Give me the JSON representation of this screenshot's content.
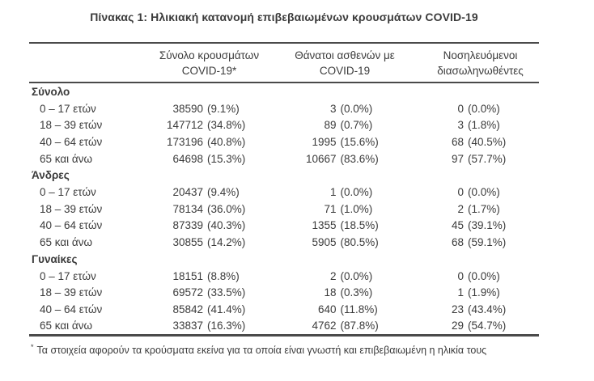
{
  "title": "Πίνακας 1: Ηλικιακή κατανομή επιβεβαιωμένων κρουσμάτων COVID-19",
  "header": {
    "columns": [
      {
        "line1": "Σύνολο κρουσμάτων",
        "line2": "COVID-19*"
      },
      {
        "line1": "Θάνατοι ασθενών με",
        "line2": "COVID-19"
      },
      {
        "line1": "Νοσηλευόμενοι",
        "line2": "διασωληνωθέντες"
      }
    ]
  },
  "sections": [
    {
      "label": "Σύνολο",
      "rows": [
        {
          "label": "0 – 17 ετών",
          "cases": {
            "n": "38590",
            "pct": "(9.1%)"
          },
          "deaths": {
            "n": "3",
            "pct": "(0.0%)"
          },
          "intubated": {
            "n": "0",
            "pct": "(0.0%)"
          }
        },
        {
          "label": "18 – 39 ετών",
          "cases": {
            "n": "147712",
            "pct": "(34.8%)"
          },
          "deaths": {
            "n": "89",
            "pct": "(0.7%)"
          },
          "intubated": {
            "n": "3",
            "pct": "(1.8%)"
          }
        },
        {
          "label": "40 – 64 ετών",
          "cases": {
            "n": "173196",
            "pct": "(40.8%)"
          },
          "deaths": {
            "n": "1995",
            "pct": "(15.6%)"
          },
          "intubated": {
            "n": "68",
            "pct": "(40.5%)"
          }
        },
        {
          "label": "65 και άνω",
          "cases": {
            "n": "64698",
            "pct": "(15.3%)"
          },
          "deaths": {
            "n": "10667",
            "pct": "(83.6%)"
          },
          "intubated": {
            "n": "97",
            "pct": "(57.7%)"
          }
        }
      ]
    },
    {
      "label": "Άνδρες",
      "rows": [
        {
          "label": "0 – 17 ετών",
          "cases": {
            "n": "20437",
            "pct": "(9.4%)"
          },
          "deaths": {
            "n": "1",
            "pct": "(0.0%)"
          },
          "intubated": {
            "n": "0",
            "pct": "(0.0%)"
          }
        },
        {
          "label": "18 – 39 ετών",
          "cases": {
            "n": "78134",
            "pct": "(36.0%)"
          },
          "deaths": {
            "n": "71",
            "pct": "(1.0%)"
          },
          "intubated": {
            "n": "2",
            "pct": "(1.7%)"
          }
        },
        {
          "label": "40 – 64 ετών",
          "cases": {
            "n": "87339",
            "pct": "(40.3%)"
          },
          "deaths": {
            "n": "1355",
            "pct": "(18.5%)"
          },
          "intubated": {
            "n": "45",
            "pct": "(39.1%)"
          }
        },
        {
          "label": "65 και άνω",
          "cases": {
            "n": "30855",
            "pct": "(14.2%)"
          },
          "deaths": {
            "n": "5905",
            "pct": "(80.5%)"
          },
          "intubated": {
            "n": "68",
            "pct": "(59.1%)"
          }
        }
      ]
    },
    {
      "label": "Γυναίκες",
      "rows": [
        {
          "label": "0 – 17 ετών",
          "cases": {
            "n": "18151",
            "pct": "(8.8%)"
          },
          "deaths": {
            "n": "2",
            "pct": "(0.0%)"
          },
          "intubated": {
            "n": "0",
            "pct": "(0.0%)"
          }
        },
        {
          "label": "18 – 39 ετών",
          "cases": {
            "n": "69572",
            "pct": "(33.5%)"
          },
          "deaths": {
            "n": "18",
            "pct": "(0.3%)"
          },
          "intubated": {
            "n": "1",
            "pct": "(1.9%)"
          }
        },
        {
          "label": "40 – 64 ετών",
          "cases": {
            "n": "85842",
            "pct": "(41.4%)"
          },
          "deaths": {
            "n": "640",
            "pct": "(11.8%)"
          },
          "intubated": {
            "n": "23",
            "pct": "(43.4%)"
          }
        },
        {
          "label": "65 και άνω",
          "cases": {
            "n": "33837",
            "pct": "(16.3%)"
          },
          "deaths": {
            "n": "4762",
            "pct": "(87.8%)"
          },
          "intubated": {
            "n": "29",
            "pct": "(54.7%)"
          }
        }
      ]
    }
  ],
  "footnote": {
    "marker": "*",
    "text": "Τα στοιχεία αφορούν τα κρούσματα εκείνα για τα οποία είναι γνωστή και επιβεβαιωμένη η ηλικία τους"
  },
  "colors": {
    "text": "#3b3b3b",
    "rule": "#4a4a4a"
  }
}
